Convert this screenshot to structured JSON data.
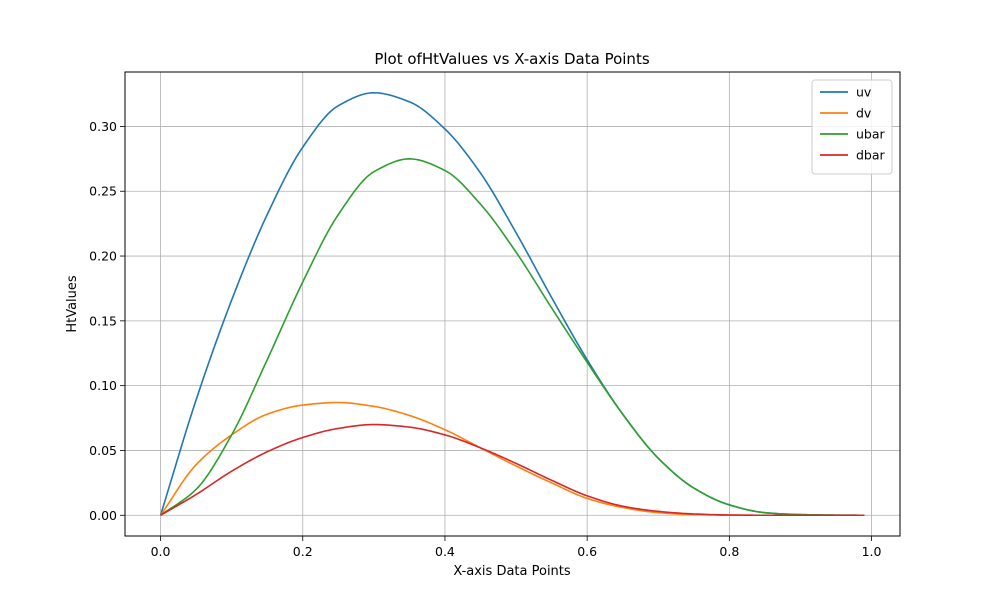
{
  "chart_data": {
    "type": "line",
    "title": "Plot ofHtValues vs X-axis Data Points",
    "xlabel": "X-axis Data Points",
    "ylabel": "HtValues",
    "xlim": [
      -0.05,
      1.04
    ],
    "ylim": [
      -0.016,
      0.342
    ],
    "xticks": [
      0.0,
      0.2,
      0.4,
      0.6,
      0.8,
      1.0
    ],
    "xtick_labels": [
      "0.0",
      "0.2",
      "0.4",
      "0.6",
      "0.8",
      "1.0"
    ],
    "yticks": [
      0.0,
      0.05,
      0.1,
      0.15,
      0.2,
      0.25,
      0.3
    ],
    "ytick_labels": [
      "0.00",
      "0.05",
      "0.10",
      "0.15",
      "0.20",
      "0.25",
      "0.30"
    ],
    "grid": true,
    "legend_position": "top-right",
    "x": [
      0.0,
      0.05,
      0.1,
      0.15,
      0.2,
      0.25,
      0.3,
      0.35,
      0.4,
      0.45,
      0.5,
      0.55,
      0.6,
      0.65,
      0.7,
      0.75,
      0.8,
      0.85,
      0.9,
      0.95,
      0.99
    ],
    "series": [
      {
        "name": "uv",
        "color": "#1f77b4",
        "values": [
          0.0,
          0.089,
          0.166,
          0.232,
          0.284,
          0.316,
          0.326,
          0.319,
          0.298,
          0.264,
          0.218,
          0.168,
          0.12,
          0.078,
          0.044,
          0.021,
          0.008,
          0.002,
          0.0005,
          0.0001,
          0.0
        ]
      },
      {
        "name": "dv",
        "color": "#ff7f0e",
        "values": [
          0.0,
          0.039,
          0.062,
          0.078,
          0.085,
          0.087,
          0.084,
          0.077,
          0.066,
          0.052,
          0.038,
          0.025,
          0.013,
          0.006,
          0.002,
          0.0005,
          0.0001,
          0.0,
          0.0,
          0.0,
          0.0
        ]
      },
      {
        "name": "ubar",
        "color": "#2ca02c",
        "values": [
          0.0,
          0.02,
          0.062,
          0.12,
          0.18,
          0.232,
          0.265,
          0.275,
          0.266,
          0.24,
          0.203,
          0.16,
          0.118,
          0.078,
          0.044,
          0.021,
          0.008,
          0.002,
          0.0005,
          0.0001,
          0.0
        ]
      },
      {
        "name": "dbar",
        "color": "#d62728",
        "values": [
          0.0,
          0.016,
          0.034,
          0.049,
          0.06,
          0.067,
          0.07,
          0.068,
          0.062,
          0.052,
          0.04,
          0.027,
          0.015,
          0.007,
          0.003,
          0.001,
          0.0002,
          0.0,
          0.0,
          0.0,
          0.0
        ]
      }
    ]
  }
}
